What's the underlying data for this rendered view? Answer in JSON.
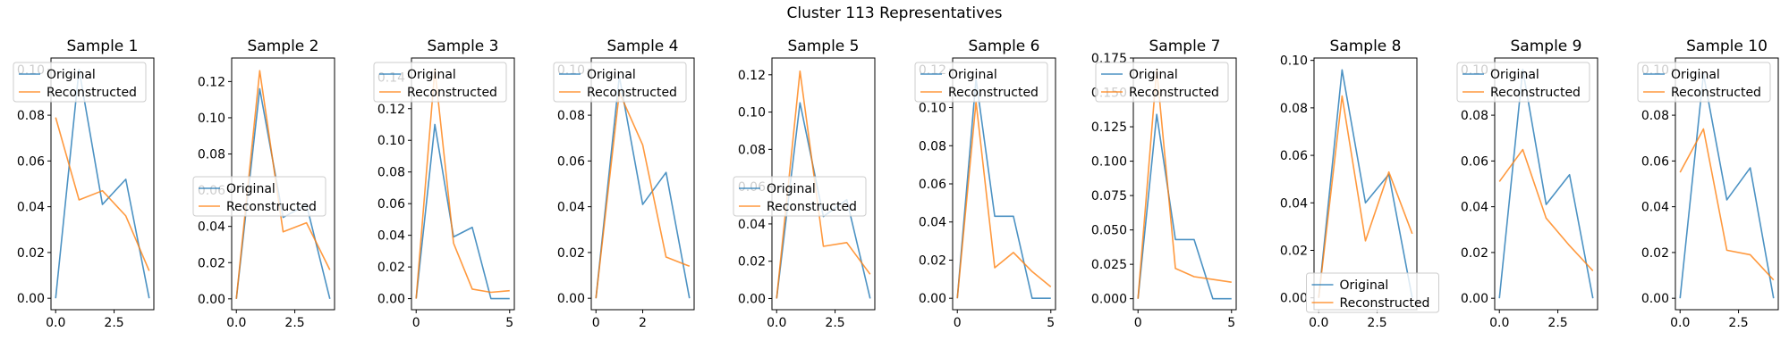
{
  "figure": {
    "title": "Cluster 113 Representatives"
  },
  "colors": {
    "original": "#1f77b4",
    "reconstructed": "#ff7f0e"
  },
  "legend": {
    "labels": [
      "Original",
      "Reconstructed"
    ]
  },
  "chart_data": [
    {
      "type": "line",
      "title": "Sample 1",
      "xlim": [
        -0.2,
        4.2
      ],
      "ylim": [
        -0.005,
        0.105
      ],
      "xticks": [
        0,
        2.5
      ],
      "xtick_labels": [
        "0.0",
        "2.5"
      ],
      "yticks": [
        0,
        0.02,
        0.04,
        0.06,
        0.08,
        0.1
      ],
      "ytick_labels": [
        "0.00",
        "0.02",
        "0.04",
        "0.06",
        "0.08",
        "0.10"
      ],
      "legend_loc": "upper-left",
      "x": [
        0,
        1,
        2,
        3,
        4
      ],
      "series": [
        {
          "name": "Original",
          "values": [
            0.0,
            0.1,
            0.041,
            0.052,
            0.0
          ]
        },
        {
          "name": "Reconstructed",
          "values": [
            0.079,
            0.043,
            0.047,
            0.036,
            0.012
          ]
        }
      ]
    },
    {
      "type": "line",
      "title": "Sample 2",
      "xlim": [
        -0.2,
        4.2
      ],
      "ylim": [
        -0.006,
        0.133
      ],
      "xticks": [
        0,
        2.5
      ],
      "xtick_labels": [
        "0.0",
        "2.5"
      ],
      "yticks": [
        0,
        0.02,
        0.04,
        0.06,
        0.08,
        0.1,
        0.12
      ],
      "ytick_labels": [
        "0.00",
        "0.02",
        "0.04",
        "0.06",
        "0.08",
        "0.10",
        "0.12"
      ],
      "legend_loc": "center-left",
      "x": [
        0,
        1,
        2,
        3,
        4
      ],
      "series": [
        {
          "name": "Original",
          "values": [
            0.0,
            0.116,
            0.045,
            0.052,
            0.0
          ]
        },
        {
          "name": "Reconstructed",
          "values": [
            0.0,
            0.126,
            0.037,
            0.042,
            0.016
          ]
        }
      ]
    },
    {
      "type": "line",
      "title": "Sample 3",
      "xlim": [
        -0.25,
        5.25
      ],
      "ylim": [
        -0.007,
        0.152
      ],
      "xticks": [
        0,
        5
      ],
      "xtick_labels": [
        "0",
        "5"
      ],
      "yticks": [
        0,
        0.02,
        0.04,
        0.06,
        0.08,
        0.1,
        0.12,
        0.14
      ],
      "ytick_labels": [
        "0.00",
        "0.02",
        "0.04",
        "0.06",
        "0.08",
        "0.10",
        "0.12",
        "0.14"
      ],
      "legend_loc": "upper-left",
      "x": [
        0,
        1,
        2,
        3,
        4,
        5
      ],
      "series": [
        {
          "name": "Original",
          "values": [
            0.0,
            0.11,
            0.039,
            0.045,
            0.0,
            0.0
          ]
        },
        {
          "name": "Reconstructed",
          "values": [
            0.0,
            0.145,
            0.035,
            0.006,
            0.004,
            0.005
          ]
        }
      ]
    },
    {
      "type": "line",
      "title": "Sample 4",
      "xlim": [
        -0.2,
        4.2
      ],
      "ylim": [
        -0.005,
        0.105
      ],
      "xticks": [
        0,
        2
      ],
      "xtick_labels": [
        "0",
        "2"
      ],
      "yticks": [
        0,
        0.02,
        0.04,
        0.06,
        0.08,
        0.1
      ],
      "ytick_labels": [
        "0.00",
        "0.02",
        "0.04",
        "0.06",
        "0.08",
        "0.10"
      ],
      "legend_loc": "upper-left",
      "x": [
        0,
        1,
        2,
        3,
        4
      ],
      "series": [
        {
          "name": "Original",
          "values": [
            0.0,
            0.097,
            0.041,
            0.055,
            0.0
          ]
        },
        {
          "name": "Reconstructed",
          "values": [
            0.0,
            0.09,
            0.067,
            0.018,
            0.014
          ]
        }
      ]
    },
    {
      "type": "line",
      "title": "Sample 5",
      "xlim": [
        -0.2,
        4.2
      ],
      "ylim": [
        -0.006,
        0.129
      ],
      "xticks": [
        0,
        2.5
      ],
      "xtick_labels": [
        "0.0",
        "2.5"
      ],
      "yticks": [
        0,
        0.02,
        0.04,
        0.06,
        0.08,
        0.1,
        0.12
      ],
      "ytick_labels": [
        "0.00",
        "0.02",
        "0.04",
        "0.06",
        "0.08",
        "0.10",
        "0.12"
      ],
      "legend_loc": "center-left",
      "x": [
        0,
        1,
        2,
        3,
        4
      ],
      "series": [
        {
          "name": "Original",
          "values": [
            0.0,
            0.105,
            0.044,
            0.053,
            0.0
          ]
        },
        {
          "name": "Reconstructed",
          "values": [
            0.0,
            0.122,
            0.028,
            0.03,
            0.013
          ]
        }
      ]
    },
    {
      "type": "line",
      "title": "Sample 6",
      "xlim": [
        -0.25,
        5.25
      ],
      "ylim": [
        -0.006,
        0.126
      ],
      "xticks": [
        0,
        5
      ],
      "xtick_labels": [
        "0",
        "5"
      ],
      "yticks": [
        0,
        0.02,
        0.04,
        0.06,
        0.08,
        0.1,
        0.12
      ],
      "ytick_labels": [
        "0.00",
        "0.02",
        "0.04",
        "0.06",
        "0.08",
        "0.10",
        "0.12"
      ],
      "legend_loc": "upper-left",
      "x": [
        0,
        1,
        2,
        3,
        4,
        5
      ],
      "series": [
        {
          "name": "Original",
          "values": [
            0.0,
            0.115,
            0.043,
            0.043,
            0.0,
            0.0
          ]
        },
        {
          "name": "Reconstructed",
          "values": [
            0.0,
            0.103,
            0.016,
            0.024,
            0.014,
            0.006
          ]
        }
      ]
    },
    {
      "type": "line",
      "title": "Sample 7",
      "xlim": [
        -0.25,
        5.25
      ],
      "ylim": [
        -0.008,
        0.175
      ],
      "xticks": [
        0,
        5
      ],
      "xtick_labels": [
        "0",
        "5"
      ],
      "yticks": [
        0,
        0.025,
        0.05,
        0.075,
        0.1,
        0.125,
        0.15,
        0.175
      ],
      "ytick_labels": [
        "0.000",
        "0.025",
        "0.050",
        "0.075",
        "0.100",
        "0.125",
        "0.150",
        "0.175"
      ],
      "legend_loc": "upper-left",
      "x": [
        0,
        1,
        2,
        3,
        4,
        5
      ],
      "series": [
        {
          "name": "Original",
          "values": [
            0.0,
            0.134,
            0.043,
            0.043,
            0.0,
            0.0
          ]
        },
        {
          "name": "Reconstructed",
          "values": [
            0.0,
            0.167,
            0.022,
            0.016,
            0.014,
            0.012
          ]
        }
      ]
    },
    {
      "type": "line",
      "title": "Sample 8",
      "xlim": [
        -0.2,
        4.2
      ],
      "ylim": [
        -0.005,
        0.101
      ],
      "xticks": [
        0,
        2.5
      ],
      "xtick_labels": [
        "0.0",
        "2.5"
      ],
      "yticks": [
        0,
        0.02,
        0.04,
        0.06,
        0.08,
        0.1
      ],
      "ytick_labels": [
        "0.00",
        "0.02",
        "0.04",
        "0.06",
        "0.08",
        "0.10"
      ],
      "legend_loc": "lower-center",
      "x": [
        0,
        1,
        2,
        3,
        4
      ],
      "series": [
        {
          "name": "Original",
          "values": [
            0.0,
            0.096,
            0.04,
            0.052,
            0.0
          ]
        },
        {
          "name": "Reconstructed",
          "values": [
            0.0,
            0.085,
            0.024,
            0.053,
            0.027
          ]
        }
      ]
    },
    {
      "type": "line",
      "title": "Sample 9",
      "xlim": [
        -0.2,
        4.2
      ],
      "ylim": [
        -0.005,
        0.105
      ],
      "xticks": [
        0,
        2.5
      ],
      "xtick_labels": [
        "0.0",
        "2.5"
      ],
      "yticks": [
        0,
        0.02,
        0.04,
        0.06,
        0.08,
        0.1
      ],
      "ytick_labels": [
        "0.00",
        "0.02",
        "0.04",
        "0.06",
        "0.08",
        "0.10"
      ],
      "legend_loc": "upper-left",
      "x": [
        0,
        1,
        2,
        3,
        4
      ],
      "series": [
        {
          "name": "Original",
          "values": [
            0.0,
            0.1,
            0.041,
            0.054,
            0.0
          ]
        },
        {
          "name": "Reconstructed",
          "values": [
            0.051,
            0.065,
            0.035,
            0.023,
            0.012
          ]
        }
      ]
    },
    {
      "type": "line",
      "title": "Sample 10",
      "xlim": [
        -0.2,
        4.2
      ],
      "ylim": [
        -0.005,
        0.105
      ],
      "xticks": [
        0,
        2.5
      ],
      "xtick_labels": [
        "0.0",
        "2.5"
      ],
      "yticks": [
        0,
        0.02,
        0.04,
        0.06,
        0.08,
        0.1
      ],
      "ytick_labels": [
        "0.00",
        "0.02",
        "0.04",
        "0.06",
        "0.08",
        "0.10"
      ],
      "legend_loc": "upper-left",
      "x": [
        0,
        1,
        2,
        3,
        4
      ],
      "series": [
        {
          "name": "Original",
          "values": [
            0.0,
            0.098,
            0.043,
            0.057,
            0.0
          ]
        },
        {
          "name": "Reconstructed",
          "values": [
            0.055,
            0.074,
            0.021,
            0.019,
            0.008
          ]
        }
      ]
    }
  ]
}
